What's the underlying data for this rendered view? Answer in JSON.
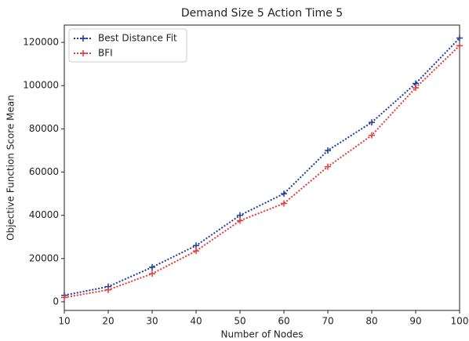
{
  "chart_data": {
    "type": "line",
    "title": "Demand Size 5 Action Time 5",
    "x_label": "Number of Nodes",
    "y_label": "Objective Function Score Mean",
    "x": [
      10,
      20,
      30,
      40,
      50,
      60,
      70,
      80,
      90,
      100
    ],
    "series": [
      {
        "name": "Best Distance Fit",
        "color": "#1f3d9e",
        "values": [
          3000,
          7000,
          16000,
          26000,
          40000,
          50000,
          70000,
          83000,
          101000,
          122000
        ]
      },
      {
        "name": "BFI",
        "color": "#e8393b",
        "values": [
          2000,
          5500,
          13000,
          23500,
          37500,
          45500,
          62500,
          77000,
          99000,
          118500
        ]
      }
    ],
    "xlim": [
      10,
      100
    ],
    "xticks": [
      10,
      20,
      30,
      40,
      50,
      60,
      70,
      80,
      90,
      100
    ],
    "ylim": [
      -4000,
      128000
    ],
    "yticks": [
      0,
      20000,
      40000,
      60000,
      80000,
      100000,
      120000
    ],
    "legend": "upper-left"
  }
}
